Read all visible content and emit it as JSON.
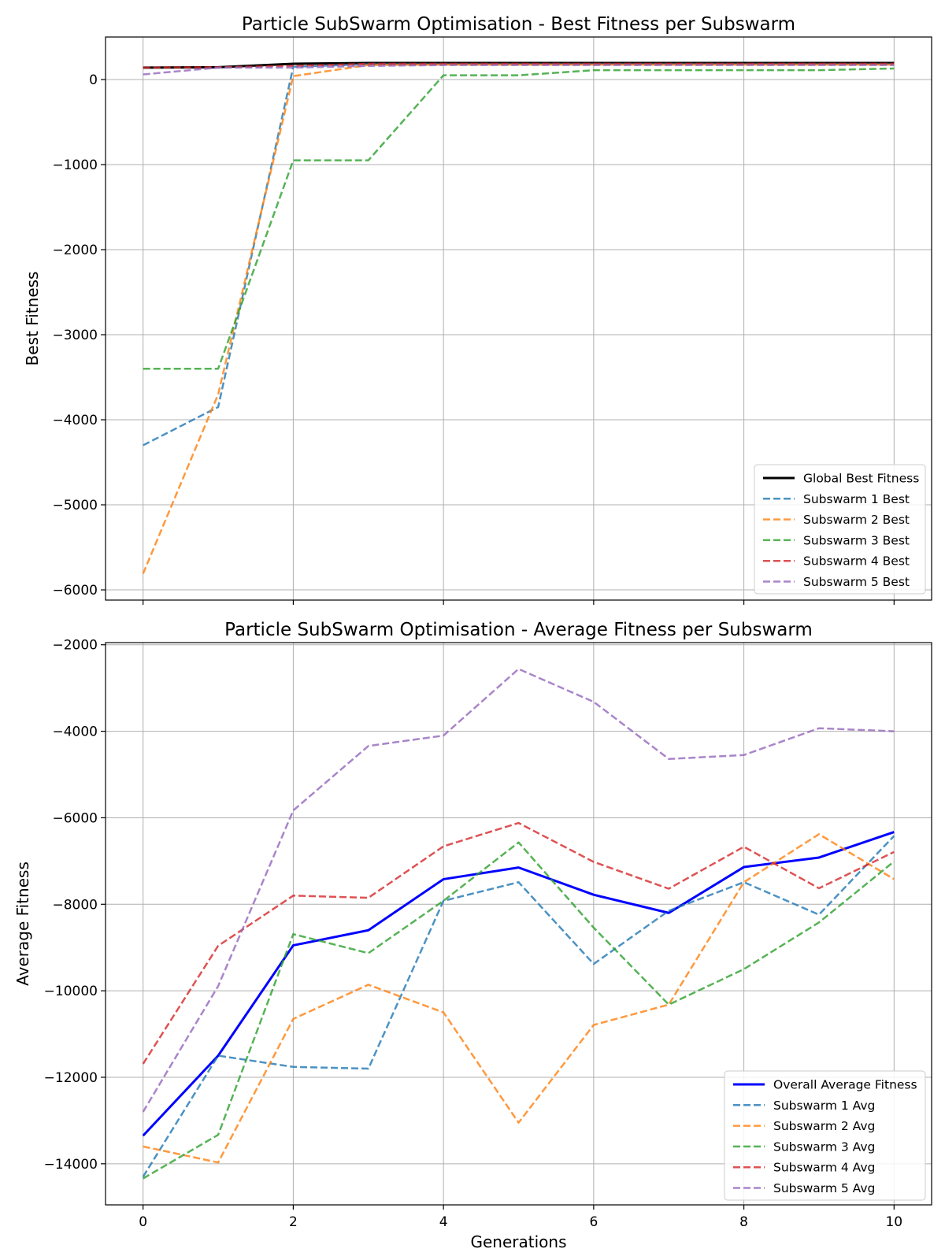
{
  "chart_data": [
    {
      "type": "line",
      "title": "Particle SubSwarm Optimisation - Best Fitness per Subswarm",
      "xlabel": "",
      "ylabel": "Best Fitness",
      "xlim": [
        -0.5,
        10.5
      ],
      "ylim": [
        -6120,
        500
      ],
      "xticks": [
        0,
        2,
        4,
        6,
        8,
        10
      ],
      "yticks": [
        0,
        -1000,
        -2000,
        -3000,
        -4000,
        -5000,
        -6000
      ],
      "ytick_labels": [
        "0",
        "−1000",
        "−2000",
        "−3000",
        "−4000",
        "−5000",
        "−6000"
      ],
      "grid": true,
      "legend_position": "lower-right",
      "x": [
        0,
        1,
        2,
        3,
        4,
        5,
        6,
        7,
        8,
        9,
        10
      ],
      "series": [
        {
          "name": "Global Best Fitness",
          "color": "#000000",
          "style": "solid",
          "width": 3,
          "values": [
            140,
            145,
            185,
            195,
            195,
            195,
            195,
            195,
            195,
            195,
            195
          ]
        },
        {
          "name": "Subswarm 1 Best",
          "color": "#1f77b4",
          "style": "dashed",
          "width": 2.5,
          "values": [
            -4300,
            -3850,
            150,
            180,
            180,
            180,
            180,
            180,
            180,
            180,
            180
          ]
        },
        {
          "name": "Subswarm 2 Best",
          "color": "#ff7f0e",
          "style": "dashed",
          "width": 2.5,
          "values": [
            -5810,
            -3700,
            40,
            170,
            175,
            175,
            175,
            175,
            175,
            175,
            175
          ]
        },
        {
          "name": "Subswarm 3 Best",
          "color": "#2ca02c",
          "style": "dashed",
          "width": 2.5,
          "values": [
            -3400,
            -3400,
            -950,
            -950,
            50,
            50,
            110,
            110,
            110,
            110,
            130
          ]
        },
        {
          "name": "Subswarm 4 Best",
          "color": "#d62728",
          "style": "dashed",
          "width": 2.5,
          "values": [
            140,
            145,
            160,
            185,
            185,
            185,
            185,
            185,
            185,
            185,
            185
          ]
        },
        {
          "name": "Subswarm 5 Best",
          "color": "#9467bd",
          "style": "dashed",
          "width": 2.5,
          "values": [
            60,
            140,
            140,
            160,
            170,
            170,
            170,
            170,
            170,
            170,
            170
          ]
        }
      ]
    },
    {
      "type": "line",
      "title": "Particle SubSwarm Optimisation - Average Fitness per Subswarm",
      "xlabel": "Generations",
      "ylabel": "Average Fitness",
      "xlim": [
        -0.5,
        10.5
      ],
      "ylim": [
        -14950,
        -1950
      ],
      "xticks": [
        0,
        2,
        4,
        6,
        8,
        10
      ],
      "yticks": [
        -2000,
        -4000,
        -6000,
        -8000,
        -10000,
        -12000,
        -14000
      ],
      "ytick_labels": [
        "−2000",
        "−4000",
        "−6000",
        "−8000",
        "−10000",
        "−12000",
        "−14000"
      ],
      "grid": true,
      "legend_position": "lower-right",
      "x": [
        0,
        1,
        2,
        3,
        4,
        5,
        6,
        7,
        8,
        9,
        10
      ],
      "series": [
        {
          "name": "Overall Average Fitness",
          "color": "#0000ff",
          "style": "solid",
          "width": 3,
          "values": [
            -13350,
            -11500,
            -8950,
            -8600,
            -7420,
            -7150,
            -7780,
            -8200,
            -7140,
            -6920,
            -6330
          ]
        },
        {
          "name": "Subswarm 1 Avg",
          "color": "#1f77b4",
          "style": "dashed",
          "width": 2.5,
          "values": [
            -14300,
            -11500,
            -11760,
            -11800,
            -7920,
            -7490,
            -9380,
            -8150,
            -7490,
            -8240,
            -6420
          ]
        },
        {
          "name": "Subswarm 2 Avg",
          "color": "#ff7f0e",
          "style": "dashed",
          "width": 2.5,
          "values": [
            -13600,
            -13970,
            -10650,
            -9860,
            -10500,
            -13050,
            -10790,
            -10320,
            -7490,
            -6380,
            -7420
          ]
        },
        {
          "name": "Subswarm 3 Avg",
          "color": "#2ca02c",
          "style": "dashed",
          "width": 2.5,
          "values": [
            -14340,
            -13330,
            -8690,
            -9130,
            -7920,
            -6570,
            -8540,
            -10320,
            -9500,
            -8420,
            -7010
          ]
        },
        {
          "name": "Subswarm 4 Avg",
          "color": "#d62728",
          "style": "dashed",
          "width": 2.5,
          "values": [
            -11690,
            -8960,
            -7800,
            -7850,
            -6660,
            -6120,
            -7020,
            -7640,
            -6670,
            -7630,
            -6790
          ]
        },
        {
          "name": "Subswarm 5 Avg",
          "color": "#9467bd",
          "style": "dashed",
          "width": 2.5,
          "values": [
            -12800,
            -9890,
            -5830,
            -4340,
            -4100,
            -2560,
            -3320,
            -4640,
            -4550,
            -3930,
            -4000
          ]
        }
      ]
    }
  ]
}
